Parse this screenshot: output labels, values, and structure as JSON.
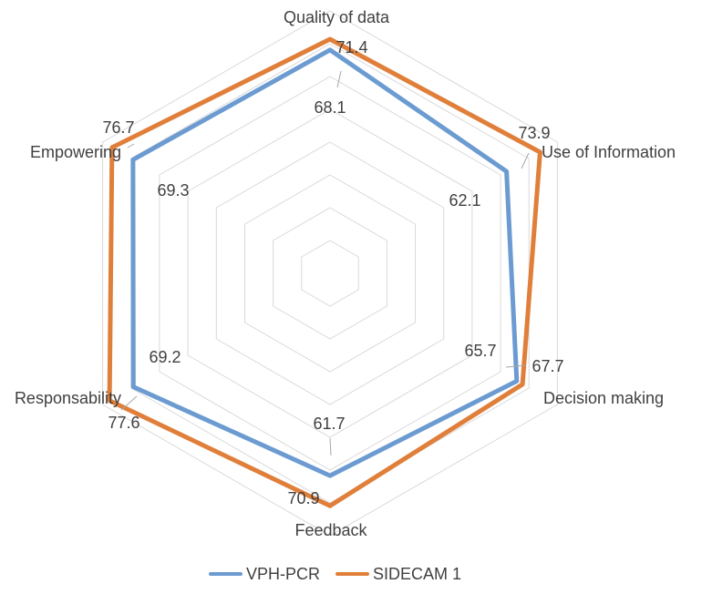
{
  "chart_data": {
    "type": "radar",
    "categories": [
      "Quality of data",
      "Use of Information",
      "Decision making",
      "Feedback",
      "Responsability",
      "Empowering"
    ],
    "series": [
      {
        "name": "VPH-PCR",
        "color": "#6b9bd1",
        "values": [
          68.1,
          62.1,
          65.7,
          61.7,
          69.2,
          69.3
        ]
      },
      {
        "name": "SIDECAM 1",
        "color": "#e07f3a",
        "values": [
          71.4,
          73.9,
          67.7,
          70.9,
          77.6,
          76.7
        ]
      }
    ],
    "rmin": 0,
    "rmax": 80,
    "grid_levels": 8,
    "grid": true,
    "legend_position": "bottom",
    "title": ""
  }
}
